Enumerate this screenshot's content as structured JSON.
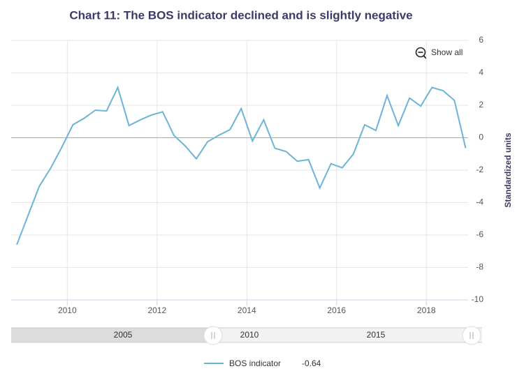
{
  "chart_data": {
    "type": "line",
    "title": "Chart 11: The BOS indicator declined and is slightly negative",
    "y_axis_label": "Standardized units",
    "show_all_button": "Show all",
    "x": [
      2008.875,
      2009.125,
      2009.375,
      2009.625,
      2009.875,
      2010.125,
      2010.375,
      2010.625,
      2010.875,
      2011.125,
      2011.375,
      2011.625,
      2011.875,
      2012.125,
      2012.375,
      2012.625,
      2012.875,
      2013.125,
      2013.375,
      2013.625,
      2013.875,
      2014.125,
      2014.375,
      2014.625,
      2014.875,
      2015.125,
      2015.375,
      2015.625,
      2015.875,
      2016.125,
      2016.375,
      2016.625,
      2016.875,
      2017.125,
      2017.375,
      2017.625,
      2017.875,
      2018.125,
      2018.375,
      2018.625,
      2018.875
    ],
    "series": [
      {
        "name": "BOS indicator",
        "color": "#6cb4d6",
        "values": [
          -6.6,
          -4.8,
          -3.0,
          -1.9,
          -0.6,
          0.8,
          1.2,
          1.7,
          1.65,
          3.1,
          0.75,
          1.1,
          1.4,
          1.6,
          0.15,
          -0.5,
          -1.3,
          -0.25,
          0.15,
          0.5,
          1.8,
          -0.2,
          1.1,
          -0.65,
          -0.85,
          -1.45,
          -1.35,
          -3.1,
          -1.6,
          -1.85,
          -1.0,
          0.8,
          0.45,
          2.6,
          0.75,
          2.45,
          1.95,
          3.1,
          2.9,
          2.3,
          -0.64
        ]
      }
    ],
    "xlim": [
      2008.75,
      2018.93
    ],
    "xticks": [
      2010,
      2012,
      2014,
      2016,
      2018
    ],
    "ylim": [
      -10,
      6
    ],
    "yticks": [
      -10,
      -8,
      -6,
      -4,
      -2,
      0,
      2,
      4,
      6
    ],
    "grid": true,
    "navigator": {
      "labels": [
        "2005",
        "2010",
        "2015"
      ]
    }
  }
}
